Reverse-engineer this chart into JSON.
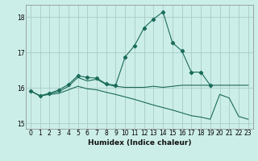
{
  "xlabel": "Humidex (Indice chaleur)",
  "bg_color": "#cceee8",
  "grid_color": "#aaccc8",
  "line_color": "#1a6b5a",
  "xlim": [
    -0.5,
    23.5
  ],
  "ylim": [
    14.85,
    18.35
  ],
  "yticks": [
    15,
    16,
    17,
    18
  ],
  "xticks": [
    0,
    1,
    2,
    3,
    4,
    5,
    6,
    7,
    8,
    9,
    10,
    11,
    12,
    13,
    14,
    15,
    16,
    17,
    18,
    19,
    20,
    21,
    22,
    23
  ],
  "series": [
    {
      "x": [
        0,
        1,
        2,
        3,
        4,
        5,
        6,
        7,
        8,
        9,
        10,
        11,
        12,
        13,
        14,
        15,
        16,
        17,
        18,
        19,
        20,
        21,
        22,
        23
      ],
      "y": [
        15.92,
        15.78,
        15.85,
        15.9,
        16.05,
        16.3,
        16.2,
        16.25,
        16.1,
        16.05,
        16.02,
        16.02,
        16.02,
        16.05,
        16.02,
        16.05,
        16.08,
        16.08,
        16.08,
        16.08,
        16.08,
        16.08,
        16.08,
        16.08
      ],
      "markers": false
    },
    {
      "x": [
        0,
        1,
        2,
        3,
        4,
        5,
        6,
        7,
        8,
        9,
        10,
        11,
        12,
        13,
        14,
        15,
        16,
        17,
        18,
        19
      ],
      "y": [
        15.92,
        15.78,
        15.85,
        15.95,
        16.1,
        16.35,
        16.3,
        16.28,
        16.12,
        16.08,
        16.88,
        17.2,
        17.7,
        17.95,
        18.15,
        17.28,
        17.05,
        16.45,
        16.45,
        16.08
      ],
      "markers": true
    },
    {
      "x": [
        0,
        1,
        2,
        3,
        4,
        5,
        6,
        7,
        8,
        9,
        10,
        11,
        12,
        13,
        14,
        15,
        16,
        17,
        18,
        19,
        20,
        21,
        22,
        23
      ],
      "y": [
        15.92,
        15.78,
        15.82,
        15.85,
        15.95,
        16.05,
        15.98,
        15.95,
        15.88,
        15.82,
        15.75,
        15.68,
        15.6,
        15.52,
        15.45,
        15.38,
        15.3,
        15.22,
        15.18,
        15.12,
        15.82,
        15.72,
        15.2,
        15.12
      ],
      "markers": false
    }
  ]
}
